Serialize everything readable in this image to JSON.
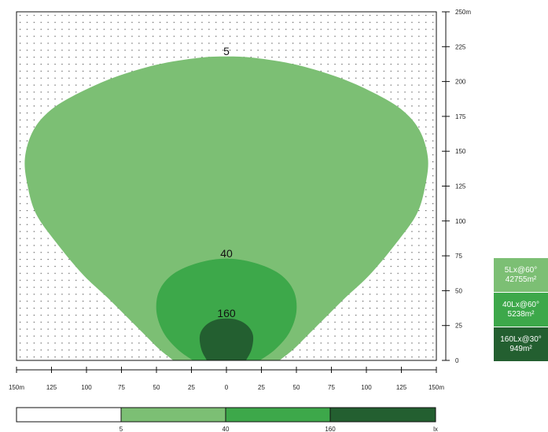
{
  "chart_data": {
    "type": "contour",
    "xlim": [
      -150,
      150
    ],
    "ylim": [
      0,
      250
    ],
    "x_ticks": [
      -150,
      -125,
      -100,
      -75,
      -50,
      -25,
      0,
      25,
      50,
      75,
      100,
      125,
      150
    ],
    "x_tick_labels": [
      "150m",
      "125",
      "100",
      "75",
      "50",
      "25",
      "0",
      "25",
      "50",
      "75",
      "100",
      "125",
      "150m"
    ],
    "y_ticks": [
      0,
      25,
      50,
      75,
      100,
      125,
      150,
      175,
      200,
      225,
      250
    ],
    "y_tick_labels": [
      "0",
      "25",
      "50",
      "75",
      "100",
      "125",
      "150",
      "175",
      "200",
      "225",
      "250m"
    ],
    "grid": "dotted",
    "contours": [
      {
        "level": 5,
        "label": "5",
        "color": "#7cbf74",
        "points": [
          [
            -38,
            0
          ],
          [
            -48,
            8
          ],
          [
            -58,
            18
          ],
          [
            -70,
            30
          ],
          [
            -85,
            45
          ],
          [
            -103,
            62
          ],
          [
            -122,
            85
          ],
          [
            -136,
            105
          ],
          [
            -142,
            125
          ],
          [
            -144,
            145
          ],
          [
            -138,
            165
          ],
          [
            -125,
            180
          ],
          [
            -105,
            192
          ],
          [
            -80,
            203
          ],
          [
            -50,
            212
          ],
          [
            -20,
            217
          ],
          [
            0,
            218
          ],
          [
            20,
            217
          ],
          [
            50,
            212
          ],
          [
            80,
            203
          ],
          [
            105,
            192
          ],
          [
            125,
            180
          ],
          [
            138,
            165
          ],
          [
            144,
            145
          ],
          [
            142,
            125
          ],
          [
            136,
            105
          ],
          [
            122,
            85
          ],
          [
            103,
            62
          ],
          [
            85,
            45
          ],
          [
            70,
            30
          ],
          [
            58,
            18
          ],
          [
            48,
            8
          ],
          [
            38,
            0
          ]
        ]
      },
      {
        "level": 40,
        "label": "40",
        "color": "#3da84a",
        "points": [
          [
            -24,
            0
          ],
          [
            -35,
            8
          ],
          [
            -45,
            20
          ],
          [
            -50,
            35
          ],
          [
            -48,
            50
          ],
          [
            -38,
            62
          ],
          [
            -20,
            70
          ],
          [
            0,
            73
          ],
          [
            20,
            70
          ],
          [
            38,
            62
          ],
          [
            48,
            50
          ],
          [
            50,
            35
          ],
          [
            45,
            20
          ],
          [
            35,
            8
          ],
          [
            24,
            0
          ]
        ]
      },
      {
        "level": 160,
        "label": "160",
        "color": "#235f30",
        "points": [
          [
            -14,
            0
          ],
          [
            -18,
            8
          ],
          [
            -19,
            18
          ],
          [
            -15,
            25
          ],
          [
            -8,
            29
          ],
          [
            0,
            30
          ],
          [
            8,
            29
          ],
          [
            15,
            25
          ],
          [
            19,
            18
          ],
          [
            18,
            8
          ],
          [
            14,
            0
          ]
        ]
      }
    ],
    "label_positions": [
      [
        0,
        219
      ],
      [
        0,
        74
      ],
      [
        0,
        31
      ]
    ],
    "legend_placement": "right",
    "legend": [
      {
        "line1": "5Lx@60°",
        "line2": "42755m²",
        "color": "#7cbf74"
      },
      {
        "line1": "40Lx@60°",
        "line2": "5238m²",
        "color": "#3da84a"
      },
      {
        "line1": "160Lx@30°",
        "line2": "949m²",
        "color": "#235f30"
      }
    ],
    "scale_bar": {
      "labels": [
        "5",
        "40",
        "160",
        "lx"
      ],
      "colors": [
        "#ffffff",
        "#7cbf74",
        "#3da84a",
        "#235f30"
      ]
    }
  }
}
